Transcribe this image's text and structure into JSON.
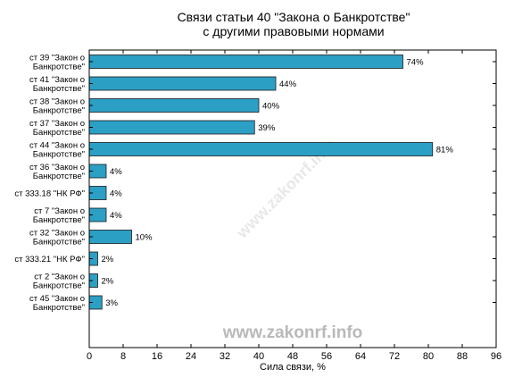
{
  "chart_data": {
    "type": "bar",
    "orientation": "horizontal",
    "title": [
      "Связи статьи 40 \"Закона о Банкротстве\"",
      "с другими правовыми нормами"
    ],
    "xlabel": "Сила связи, %",
    "xlim": [
      0,
      96
    ],
    "xticks": [
      0,
      8,
      16,
      24,
      32,
      40,
      48,
      56,
      64,
      72,
      80,
      88,
      96
    ],
    "bar_color": "#2c9fc5",
    "value_suffix": "%",
    "categories": [
      [
        "ст 39 \"Закон о",
        "Банкротстве\""
      ],
      [
        "ст 41 \"Закон о",
        "Банкротстве\""
      ],
      [
        "ст 38 \"Закон о",
        "Банкротстве\""
      ],
      [
        "ст 37 \"Закон о",
        "Банкротстве\""
      ],
      [
        "ст 44 \"Закон о",
        "Банкротстве\""
      ],
      [
        "ст 36 \"Закон о",
        "Банкротстве\""
      ],
      [
        "ст 333.18 \"НК РФ\""
      ],
      [
        "ст 7 \"Закон о",
        "Банкротстве\""
      ],
      [
        "ст 32 \"Закон о",
        "Банкротстве\""
      ],
      [
        "ст 333.21 \"НК РФ\""
      ],
      [
        "ст 2 \"Закон о",
        "Банкротстве\""
      ],
      [
        "ст 45 \"Закон о",
        "Банкротстве\""
      ]
    ],
    "values": [
      74,
      44,
      40,
      39,
      81,
      4,
      4,
      4,
      10,
      2,
      2,
      3
    ]
  },
  "watermark": "www.zakonrf.info"
}
